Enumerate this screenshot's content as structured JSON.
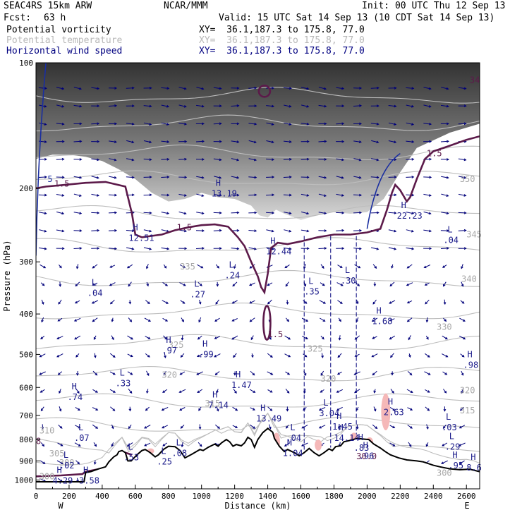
{
  "header": {
    "model": "SEAC4RS 15km ARW",
    "org": "NCAR/MMM",
    "init": "Init: 00 UTC Thu 12 Sep 13",
    "fcst_label": "Fcst:",
    "fcst_value": "63 h",
    "valid": "Valid: 15 UTC Sat 14 Sep 13 (10 CDT Sat 14 Sep 13)",
    "fields": [
      {
        "name": "Potential vorticity",
        "xy": "XY=  36.1,187.3 to 175.8, 77.0"
      },
      {
        "name": "Potential temperature",
        "xy": "XY=  36.1,187.3 to 175.8, 77.0"
      },
      {
        "name": "Horizontal wind speed",
        "xy": "XY=  36.1,187.3 to 175.8, 77.0"
      }
    ]
  },
  "chart_data": {
    "type": "cross-section",
    "xlabel": "Distance (km)",
    "ylabel": "Pressure (hPa)",
    "xlim": [
      0,
      2680
    ],
    "ylim": [
      1050,
      100
    ],
    "y_scale": "log",
    "x_ticks": [
      0,
      200,
      400,
      600,
      800,
      1000,
      1200,
      1400,
      1600,
      1800,
      2000,
      2200,
      2400,
      2600
    ],
    "y_ticks": [
      100,
      200,
      300,
      400,
      500,
      600,
      700,
      800,
      900,
      1000
    ],
    "x_end_labels": {
      "left": "W",
      "right": "E"
    },
    "isentrope_labels": [
      {
        "text": "350",
        "x": 2560,
        "p": 190
      },
      {
        "text": "345",
        "x": 2600,
        "p": 258
      },
      {
        "text": "340",
        "x": 2570,
        "p": 330
      },
      {
        "text": "335",
        "x": 870,
        "p": 308
      },
      {
        "text": "330",
        "x": 2420,
        "p": 430
      },
      {
        "text": "325",
        "x": 800,
        "p": 475
      },
      {
        "text": "325",
        "x": 1640,
        "p": 485
      },
      {
        "text": "320",
        "x": 760,
        "p": 560
      },
      {
        "text": "320",
        "x": 1720,
        "p": 572
      },
      {
        "text": "320",
        "x": 2560,
        "p": 610
      },
      {
        "text": "315",
        "x": 1020,
        "p": 655
      },
      {
        "text": "315",
        "x": 2560,
        "p": 682
      },
      {
        "text": "310",
        "x": 20,
        "p": 762
      },
      {
        "text": "305",
        "x": 80,
        "p": 865
      },
      {
        "text": "300",
        "x": 140,
        "p": 910
      },
      {
        "text": "300",
        "x": 2420,
        "p": 962
      },
      {
        "text": "300",
        "x": 20,
        "p": 980
      }
    ],
    "hl_markers": [
      {
        "type": "H",
        "value": "12.51",
        "x": 560,
        "p": 262
      },
      {
        "type": "H",
        "value": "13.19",
        "x": 1060,
        "p": 205
      },
      {
        "type": "H",
        "value": "12.44",
        "x": 1390,
        "p": 282
      },
      {
        "type": "H",
        "value": "22.23",
        "x": 2180,
        "p": 232
      },
      {
        "type": "L",
        "value": ".04",
        "x": 310,
        "p": 355
      },
      {
        "type": "L",
        "value": ".24",
        "x": 1140,
        "p": 322
      },
      {
        "type": "L",
        "value": ".27",
        "x": 930,
        "p": 358
      },
      {
        "type": "L",
        "value": ".35",
        "x": 1620,
        "p": 352
      },
      {
        "type": "L",
        "value": ".30",
        "x": 1840,
        "p": 332
      },
      {
        "type": "L",
        "value": ".04",
        "x": 2460,
        "p": 265
      },
      {
        "type": "H",
        "value": "1.68",
        "x": 2030,
        "p": 415
      },
      {
        "type": "H",
        "value": ".97",
        "x": 760,
        "p": 488
      },
      {
        "type": "H",
        "value": ".99",
        "x": 980,
        "p": 498
      },
      {
        "type": "H",
        "value": ".98",
        "x": 2580,
        "p": 528
      },
      {
        "type": "L",
        "value": ".33",
        "x": 480,
        "p": 585
      },
      {
        "type": "H",
        "value": ".74",
        "x": 190,
        "p": 630
      },
      {
        "type": "H",
        "value": "1.47",
        "x": 1180,
        "p": 590
      },
      {
        "type": "H",
        "value": "7.14",
        "x": 1040,
        "p": 660
      },
      {
        "type": "H",
        "value": "13.49",
        "x": 1330,
        "p": 710
      },
      {
        "type": "L",
        "value": "3.04",
        "x": 1710,
        "p": 690
      },
      {
        "type": "H",
        "value": "2.63",
        "x": 2100,
        "p": 685
      },
      {
        "type": "H",
        "value": "1.45",
        "x": 1790,
        "p": 742
      },
      {
        "type": "H",
        "value": "14.14",
        "x": 1800,
        "p": 790
      },
      {
        "type": "L",
        "value": ".04",
        "x": 1510,
        "p": 790
      },
      {
        "type": "L",
        "value": ".03",
        "x": 2450,
        "p": 745
      },
      {
        "type": "L",
        "value": ".07",
        "x": 230,
        "p": 790
      },
      {
        "type": "L",
        "value": ".08",
        "x": 820,
        "p": 860
      },
      {
        "type": "L",
        "value": ".53",
        "x": 530,
        "p": 880
      },
      {
        "type": "L",
        "value": ".25",
        "x": 730,
        "p": 900
      },
      {
        "type": "L",
        "value": ".29",
        "x": 2470,
        "p": 830
      },
      {
        "type": "H",
        "value": "1.04",
        "x": 1490,
        "p": 860
      },
      {
        "type": "H",
        "value": ".83",
        "x": 1920,
        "p": 835
      },
      {
        "type": "H",
        "value": ".96",
        "x": 1950,
        "p": 872
      },
      {
        "type": "L",
        "value": ".02",
        "x": 140,
        "p": 920
      },
      {
        "type": "H",
        "value": ".95",
        "x": 2490,
        "p": 920
      },
      {
        "type": "H",
        "value": "8.6",
        "x": 2600,
        "p": 930
      },
      {
        "type": "H",
        "value": "4.29",
        "x": 100,
        "p": 1000
      },
      {
        "type": "H",
        "value": "3.58",
        "x": 260,
        "p": 1000
      }
    ],
    "pv_labels": [
      {
        "text": "1.5",
        "x": 110,
        "p": 195
      },
      {
        "text": "1.5",
        "x": 850,
        "p": 248
      },
      {
        "text": "1.5",
        "x": 1400,
        "p": 448
      },
      {
        "text": "1.5",
        "x": 2360,
        "p": 165
      },
      {
        "text": "34",
        "x": 2620,
        "p": 110
      },
      {
        "text": "8",
        "x": 0,
        "p": 808
      },
      {
        "text": "30.0",
        "x": 1935,
        "p": 878
      }
    ],
    "wind_speed_label": "5",
    "terrain": [
      [
        0,
        1010
      ],
      [
        120,
        1010
      ],
      [
        290,
        1010
      ],
      [
        300,
        960
      ],
      [
        330,
        955
      ],
      [
        380,
        940
      ],
      [
        420,
        930
      ],
      [
        440,
        905
      ],
      [
        470,
        880
      ],
      [
        490,
        870
      ],
      [
        500,
        855
      ],
      [
        520,
        850
      ],
      [
        540,
        860
      ],
      [
        555,
        900
      ],
      [
        575,
        900
      ],
      [
        610,
        870
      ],
      [
        640,
        850
      ],
      [
        660,
        845
      ],
      [
        690,
        860
      ],
      [
        720,
        880
      ],
      [
        740,
        870
      ],
      [
        770,
        845
      ],
      [
        800,
        830
      ],
      [
        840,
        832
      ],
      [
        870,
        850
      ],
      [
        900,
        885
      ],
      [
        940,
        868
      ],
      [
        990,
        845
      ],
      [
        1010,
        850
      ],
      [
        1040,
        835
      ],
      [
        1080,
        820
      ],
      [
        1100,
        830
      ],
      [
        1120,
        815
      ],
      [
        1150,
        800
      ],
      [
        1170,
        810
      ],
      [
        1190,
        830
      ],
      [
        1210,
        822
      ],
      [
        1240,
        828
      ],
      [
        1260,
        815
      ],
      [
        1280,
        790
      ],
      [
        1300,
        800
      ],
      [
        1320,
        835
      ],
      [
        1340,
        800
      ],
      [
        1370,
        770
      ],
      [
        1400,
        752
      ],
      [
        1430,
        768
      ],
      [
        1440,
        795
      ],
      [
        1470,
        830
      ],
      [
        1500,
        855
      ],
      [
        1520,
        845
      ],
      [
        1560,
        860
      ],
      [
        1590,
        875
      ],
      [
        1620,
        860
      ],
      [
        1650,
        840
      ],
      [
        1680,
        860
      ],
      [
        1710,
        875
      ],
      [
        1740,
        860
      ],
      [
        1770,
        842
      ],
      [
        1790,
        850
      ],
      [
        1810,
        832
      ],
      [
        1840,
        828
      ],
      [
        1860,
        810
      ],
      [
        1890,
        805
      ],
      [
        1940,
        795
      ],
      [
        1980,
        798
      ],
      [
        2010,
        800
      ],
      [
        2040,
        820
      ],
      [
        2080,
        838
      ],
      [
        2110,
        855
      ],
      [
        2140,
        870
      ],
      [
        2190,
        885
      ],
      [
        2240,
        895
      ],
      [
        2300,
        900
      ],
      [
        2340,
        905
      ],
      [
        2400,
        922
      ],
      [
        2440,
        930
      ],
      [
        2500,
        940
      ],
      [
        2560,
        945
      ],
      [
        2620,
        942
      ],
      [
        2680,
        955
      ]
    ],
    "tropopause_pv": [
      [
        0,
        200
      ],
      [
        60,
        198
      ],
      [
        180,
        196
      ],
      [
        300,
        194
      ],
      [
        420,
        193
      ],
      [
        540,
        198
      ],
      [
        580,
        230
      ],
      [
        600,
        258
      ],
      [
        640,
        262
      ],
      [
        700,
        260
      ],
      [
        760,
        258
      ],
      [
        840,
        252
      ],
      [
        920,
        248
      ],
      [
        1000,
        245
      ],
      [
        1080,
        244
      ],
      [
        1160,
        247
      ],
      [
        1220,
        262
      ],
      [
        1260,
        275
      ],
      [
        1300,
        300
      ],
      [
        1340,
        325
      ],
      [
        1360,
        345
      ],
      [
        1380,
        355
      ],
      [
        1400,
        320
      ],
      [
        1420,
        278
      ],
      [
        1460,
        270
      ],
      [
        1520,
        272
      ],
      [
        1600,
        268
      ],
      [
        1700,
        262
      ],
      [
        1800,
        258
      ],
      [
        1900,
        258
      ],
      [
        2000,
        255
      ],
      [
        2080,
        250
      ],
      [
        2120,
        225
      ],
      [
        2150,
        205
      ],
      [
        2170,
        196
      ],
      [
        2200,
        202
      ],
      [
        2240,
        215
      ],
      [
        2260,
        210
      ],
      [
        2300,
        190
      ],
      [
        2350,
        170
      ],
      [
        2400,
        163
      ],
      [
        2500,
        158
      ],
      [
        2600,
        153
      ],
      [
        2680,
        150
      ]
    ],
    "stratosphere_shading": [
      [
        0,
        100
      ],
      [
        2680,
        100
      ],
      [
        2680,
        140
      ],
      [
        2500,
        147
      ],
      [
        2300,
        160
      ],
      [
        2200,
        183
      ],
      [
        2100,
        212
      ],
      [
        2000,
        228
      ],
      [
        1900,
        230
      ],
      [
        1800,
        228
      ],
      [
        1700,
        232
      ],
      [
        1600,
        238
      ],
      [
        1500,
        230
      ],
      [
        1450,
        225
      ],
      [
        1400,
        235
      ],
      [
        1350,
        232
      ],
      [
        1300,
        220
      ],
      [
        1200,
        212
      ],
      [
        1100,
        210
      ],
      [
        1000,
        205
      ],
      [
        900,
        212
      ],
      [
        800,
        215
      ],
      [
        700,
        205
      ],
      [
        600,
        190
      ],
      [
        500,
        180
      ],
      [
        400,
        172
      ],
      [
        300,
        168
      ],
      [
        200,
        166
      ],
      [
        100,
        166
      ],
      [
        0,
        170
      ]
    ]
  }
}
